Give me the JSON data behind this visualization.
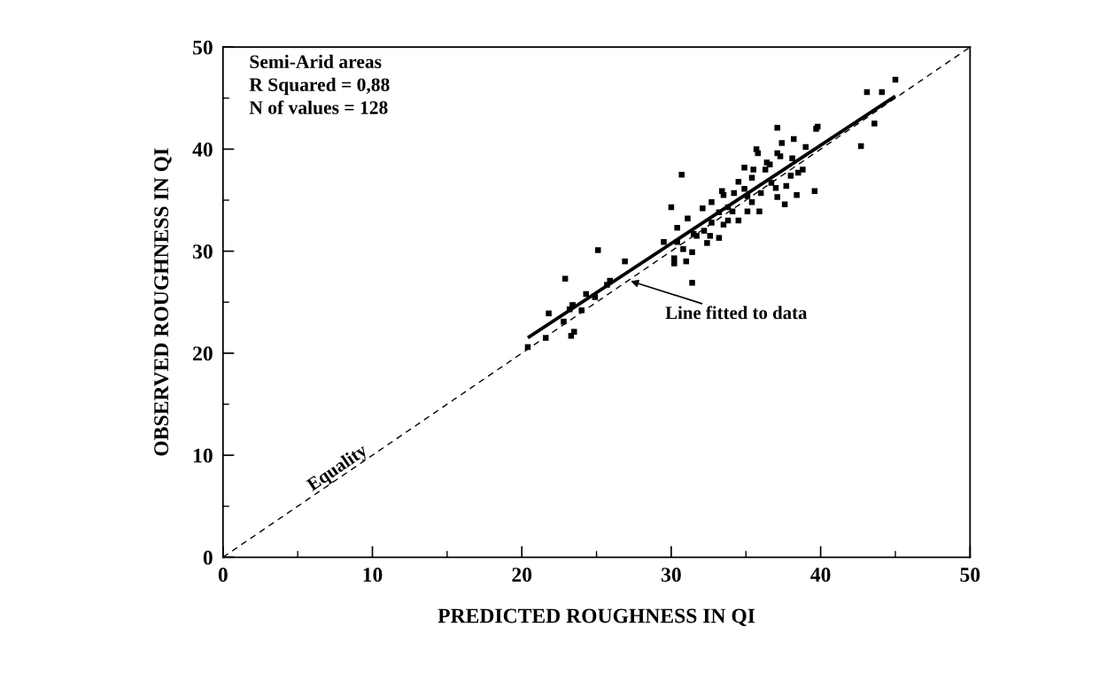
{
  "chart_data": {
    "type": "scatter",
    "xlabel": "PREDICTED ROUGHNESS IN QI",
    "ylabel": "OBSERVED ROUGHNESS IN QI",
    "xlim": [
      0,
      50
    ],
    "ylim": [
      0,
      50
    ],
    "xticks": [
      0,
      10,
      20,
      30,
      40,
      50
    ],
    "yticks": [
      0,
      10,
      20,
      30,
      40,
      50
    ],
    "grid": false,
    "legend": false,
    "annotations": [
      "Semi-Arid areas",
      "R Squared = 0,88",
      "N of values = 128",
      {
        "text": "Line fitted to data",
        "x": 27.2,
        "y": 27.1
      },
      {
        "text": "Equality",
        "x": 8,
        "y": 8
      }
    ],
    "series": [
      {
        "color": "#000000",
        "marker": "square",
        "x": [
          21.8,
          20.4,
          21.6,
          22.8,
          23.3,
          23.5,
          23.4,
          24.0,
          23.2,
          22.9,
          25.1,
          26.9,
          24.3,
          24.9,
          23.4,
          25.9,
          25.7,
          30.0,
          30.7,
          29.5,
          30.4,
          30.4,
          30.8,
          31.4,
          30.2,
          30.2,
          31.0,
          31.4,
          31.1,
          31.5,
          31.7,
          32.2,
          32.6,
          32.4,
          33.2,
          32.7,
          32.1,
          32.7,
          33.2,
          33.5,
          33.8,
          33.4,
          33.5,
          34.2,
          33.8,
          34.1,
          34.5,
          34.5,
          34.9,
          34.9,
          35.1,
          35.1,
          35.4,
          35.9,
          35.5,
          35.4,
          35.7,
          35.8,
          36.0,
          36.3,
          36.4,
          36.6,
          36.7,
          37.0,
          37.1,
          37.1,
          37.3,
          37.1,
          37.4,
          37.7,
          37.6,
          38.0,
          38.1,
          38.2,
          38.4,
          38.5,
          38.8,
          39.0,
          39.6,
          39.8,
          39.7,
          43.1,
          44.1,
          45.0,
          43.6,
          42.7
        ],
        "values": [
          23.9,
          20.6,
          21.5,
          23.1,
          21.7,
          22.1,
          24.7,
          24.2,
          24.3,
          27.3,
          30.1,
          29.0,
          25.8,
          25.5,
          24.7,
          27.1,
          26.7,
          34.3,
          37.5,
          30.9,
          32.3,
          30.9,
          30.2,
          29.9,
          29.3,
          28.8,
          29.0,
          26.9,
          33.2,
          31.7,
          31.5,
          32.0,
          31.5,
          30.8,
          31.3,
          32.8,
          34.2,
          34.8,
          33.8,
          32.6,
          33.0,
          35.9,
          35.5,
          35.7,
          34.3,
          33.9,
          33.0,
          36.8,
          36.1,
          38.2,
          35.4,
          33.9,
          34.8,
          33.9,
          38.0,
          37.2,
          40.0,
          39.6,
          35.7,
          38.0,
          38.7,
          38.5,
          36.7,
          36.2,
          35.3,
          39.6,
          39.3,
          42.1,
          40.6,
          36.4,
          34.6,
          37.4,
          39.1,
          41.0,
          35.5,
          37.7,
          38.0,
          40.2,
          35.9,
          42.2,
          42.0,
          45.6,
          45.6,
          46.8,
          42.5,
          40.3
        ]
      },
      {
        "type": "line",
        "color": "#000000",
        "line_style": "solid",
        "x": [
          20.5,
          44.9
        ],
        "values": [
          21.6,
          45.1
        ]
      },
      {
        "type": "line",
        "color": "#000000",
        "line_style": "dashed",
        "x": [
          0,
          50
        ],
        "values": [
          0,
          50
        ]
      }
    ]
  }
}
